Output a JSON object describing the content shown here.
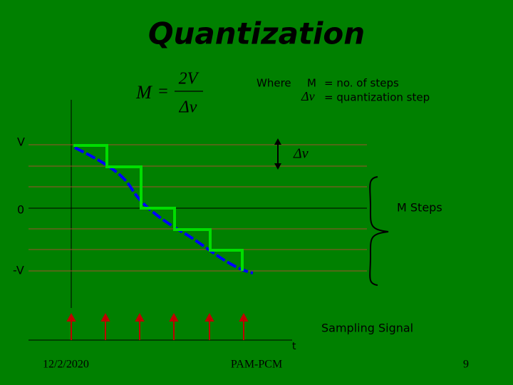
{
  "title": "Quantization",
  "formula": {
    "lhs": "M",
    "eq": "=",
    "numerator": "2V",
    "denominator": "Δv"
  },
  "legend": {
    "where": "Where",
    "rows": [
      {
        "symbol": "M",
        "text": "= no. of steps"
      },
      {
        "symbol": "Δv",
        "text": "= quantization step"
      }
    ]
  },
  "axis_labels": {
    "top": "V",
    "zero": "0",
    "bottom": "-V",
    "time": "t"
  },
  "step_label": "Δv",
  "brace_label": "M Steps",
  "sampling_label": "Sampling Signal",
  "footer": {
    "date": "12/2/2020",
    "center": "PAM-PCM",
    "page": "9"
  }
}
